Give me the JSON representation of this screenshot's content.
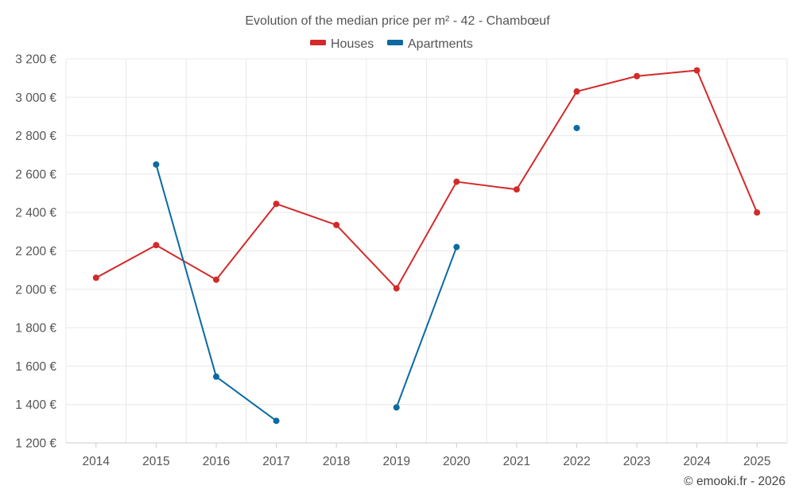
{
  "chart_data": {
    "type": "line",
    "title": "Evolution of the median price per m² - 42 - Chambœuf",
    "categories": [
      "2014",
      "2015",
      "2016",
      "2017",
      "2018",
      "2019",
      "2020",
      "2021",
      "2022",
      "2023",
      "2024",
      "2025"
    ],
    "y_ticks": [
      "1 200 €",
      "1 400 €",
      "1 600 €",
      "1 800 €",
      "2 000 €",
      "2 200 €",
      "2 400 €",
      "2 600 €",
      "2 800 €",
      "3 000 €",
      "3 200 €"
    ],
    "ylim": [
      1200,
      3200
    ],
    "grid": true,
    "legend_position": "top-center",
    "series": [
      {
        "name": "Houses",
        "color": "#d32a2a",
        "values": [
          2060,
          2230,
          2050,
          2445,
          2335,
          2005,
          2560,
          2520,
          3030,
          3110,
          3140,
          2400
        ]
      },
      {
        "name": "Apartments",
        "color": "#0b6aa2",
        "values": [
          null,
          2650,
          1545,
          1315,
          null,
          1385,
          2220,
          null,
          2840,
          null,
          null,
          null
        ]
      }
    ]
  },
  "credit": "© emooki.fr - 2026"
}
